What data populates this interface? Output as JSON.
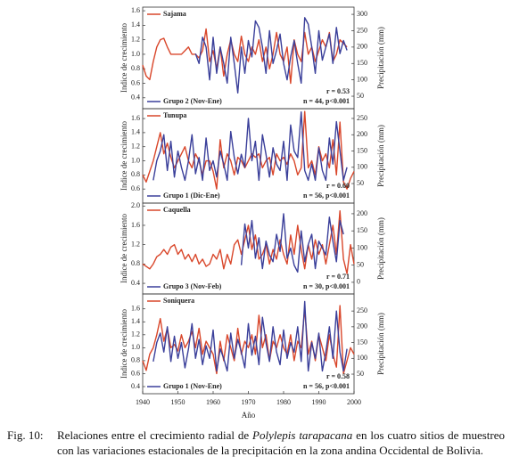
{
  "chart_data": [
    {
      "type": "line",
      "ylabel": "Indice de crecimiento",
      "y2label": "Precipitación (mm)",
      "x": [
        1940,
        1941,
        1942,
        1943,
        1944,
        1945,
        1946,
        1947,
        1948,
        1949,
        1950,
        1951,
        1952,
        1953,
        1954,
        1955,
        1956,
        1957,
        1958,
        1959,
        1960,
        1961,
        1962,
        1963,
        1964,
        1965,
        1966,
        1967,
        1968,
        1969,
        1970,
        1971,
        1972,
        1973,
        1974,
        1975,
        1976,
        1977,
        1978,
        1979,
        1980,
        1981,
        1982,
        1983,
        1984,
        1985,
        1986,
        1987,
        1988,
        1989,
        1990,
        1991,
        1992,
        1993,
        1994,
        1995,
        1996,
        1997,
        1998,
        1999,
        2000
      ],
      "xlim": [
        1940,
        2000
      ],
      "ylim": [
        0.25,
        1.65
      ],
      "yticks": [
        0.4,
        0.6,
        0.8,
        {
          "value": 1,
          "label": "1.0"
        },
        1.2,
        1.4,
        1.6
      ],
      "y2lim": [
        12,
        322
      ],
      "y2ticks": [
        50,
        100,
        150,
        200,
        250,
        300
      ],
      "series": [
        {
          "name": "Sajama",
          "color": "#d9472b",
          "values": [
            0.85,
            0.7,
            0.65,
            0.9,
            1.1,
            1.2,
            1.22,
            1.1,
            1.0,
            1.0,
            1.0,
            1.0,
            1.05,
            1.1,
            1.0,
            1.0,
            0.95,
            1.05,
            1.35,
            0.9,
            1.05,
            0.8,
            1.1,
            0.7,
            1.0,
            1.2,
            1.0,
            0.9,
            1.25,
            1.0,
            0.9,
            1.1,
            1.0,
            1.2,
            0.9,
            1.1,
            0.8,
            1.0,
            1.3,
            1.0,
            0.9,
            1.1,
            0.6,
            1.2,
            1.0,
            0.9,
            1.3,
            1.0,
            1.1,
            0.9,
            1.05,
            1.2,
            1.1,
            1.3,
            0.9,
            1.0,
            1.2,
            1.15,
            1.1,
            null,
            null
          ]
        },
        {
          "name": "Grupo 2 (Nov-Ene)",
          "color": "#3a3f9a",
          "axis": "y2",
          "values": [
            null,
            null,
            null,
            null,
            null,
            null,
            null,
            null,
            null,
            null,
            null,
            null,
            null,
            null,
            null,
            180,
            150,
            230,
            200,
            100,
            230,
            120,
            200,
            150,
            90,
            230,
            150,
            60,
            200,
            120,
            220,
            170,
            280,
            260,
            200,
            120,
            250,
            150,
            190,
            240,
            150,
            100,
            170,
            220,
            150,
            90,
            290,
            270,
            200,
            120,
            250,
            160,
            200,
            240,
            150,
            260,
            180,
            220,
            190,
            null,
            null
          ]
        }
      ],
      "annotations": [
        "r = 0.53",
        "n = 44, p<0.001"
      ]
    },
    {
      "type": "line",
      "ylabel": "Indice de crecimiento",
      "y2label": "Precipitación (mm)",
      "x": [
        1940,
        1941,
        1942,
        1943,
        1944,
        1945,
        1946,
        1947,
        1948,
        1949,
        1950,
        1951,
        1952,
        1953,
        1954,
        1955,
        1956,
        1957,
        1958,
        1959,
        1960,
        1961,
        1962,
        1963,
        1964,
        1965,
        1966,
        1967,
        1968,
        1969,
        1970,
        1971,
        1972,
        1973,
        1974,
        1975,
        1976,
        1977,
        1978,
        1979,
        1980,
        1981,
        1982,
        1983,
        1984,
        1985,
        1986,
        1987,
        1988,
        1989,
        1990,
        1991,
        1992,
        1993,
        1994,
        1995,
        1996,
        1997,
        1998,
        1999,
        2000
      ],
      "xlim": [
        1940,
        2000
      ],
      "ylim": [
        0.4,
        1.74
      ],
      "yticks": [
        0.6,
        0.8,
        {
          "value": 1,
          "label": "1.0"
        },
        1.2,
        1.4,
        1.6
      ],
      "y2lim": [
        -10,
        280
      ],
      "y2ticks": [
        50,
        100,
        150,
        200,
        250
      ],
      "series": [
        {
          "name": "Tunupa",
          "color": "#d9472b",
          "values": [
            0.8,
            0.7,
            0.85,
            1.0,
            1.2,
            1.4,
            1.1,
            1.25,
            1.05,
            0.9,
            1.0,
            1.1,
            1.2,
            1.0,
            0.9,
            1.1,
            1.0,
            0.8,
            1.0,
            1.0,
            0.85,
            0.6,
            1.3,
            0.9,
            1.1,
            1.0,
            0.8,
            1.05,
            1.0,
            0.9,
            1.0,
            1.1,
            1.05,
            1.1,
            0.9,
            1.0,
            1.05,
            0.8,
            1.1,
            1.0,
            1.05,
            0.95,
            1.1,
            1.0,
            0.8,
            0.9,
            1.7,
            0.9,
            1.0,
            0.8,
            1.2,
            1.0,
            1.1,
            0.9,
            1.3,
            0.8,
            1.55,
            0.7,
            0.6,
            0.75,
            0.85
          ]
        },
        {
          "name": "Grupo 1 (Dic-Ene)",
          "color": "#3a3f9a",
          "axis": "y2",
          "values": [
            null,
            null,
            null,
            60,
            120,
            150,
            200,
            90,
            180,
            70,
            150,
            100,
            60,
            120,
            200,
            80,
            130,
            60,
            190,
            90,
            120,
            70,
            150,
            110,
            60,
            210,
            130,
            80,
            140,
            100,
            250,
            120,
            180,
            60,
            200,
            140,
            70,
            160,
            110,
            90,
            180,
            60,
            230,
            150,
            130,
            270,
            90,
            60,
            110,
            60,
            160,
            90,
            60,
            190,
            110,
            240,
            150,
            60,
            100,
            null,
            null
          ]
        }
      ],
      "annotations": [
        "r = 0.60",
        "n = 56, p<0.001"
      ]
    },
    {
      "type": "line",
      "ylabel": "Indice de crecimiento",
      "y2label": "Precipitación (mm)",
      "x": [
        1940,
        1941,
        1942,
        1943,
        1944,
        1945,
        1946,
        1947,
        1948,
        1949,
        1950,
        1951,
        1952,
        1953,
        1954,
        1955,
        1956,
        1957,
        1958,
        1959,
        1960,
        1961,
        1962,
        1963,
        1964,
        1965,
        1966,
        1967,
        1968,
        1969,
        1970,
        1971,
        1972,
        1973,
        1974,
        1975,
        1976,
        1977,
        1978,
        1979,
        1980,
        1981,
        1982,
        1983,
        1984,
        1985,
        1986,
        1987,
        1988,
        1989,
        1990,
        1991,
        1992,
        1993,
        1994,
        1995,
        1996,
        1997,
        1998,
        1999,
        2000
      ],
      "xlim": [
        1940,
        2000
      ],
      "ylim": [
        0.18,
        2.06
      ],
      "yticks": [
        0.4,
        0.8,
        1.2,
        1.6,
        {
          "value": 2,
          "label": "2.0"
        }
      ],
      "y2lim": [
        -34,
        231
      ],
      "y2ticks": [
        0,
        50,
        100,
        150,
        200
      ],
      "series": [
        {
          "name": "Caquella",
          "color": "#d9472b",
          "values": [
            0.8,
            0.75,
            0.7,
            0.8,
            0.95,
            1.0,
            1.1,
            1.0,
            1.15,
            1.2,
            1.0,
            1.1,
            0.9,
            1.0,
            0.85,
            1.0,
            0.8,
            0.9,
            0.75,
            0.8,
            1.0,
            0.9,
            1.1,
            0.7,
            1.0,
            0.8,
            1.2,
            1.3,
            1.0,
            1.3,
            1.6,
            1.1,
            1.4,
            0.9,
            1.0,
            1.2,
            0.8,
            1.1,
            0.9,
            1.3,
            1.0,
            0.8,
            1.4,
            1.0,
            1.6,
            1.1,
            0.7,
            1.2,
            0.9,
            1.3,
            1.0,
            1.2,
            0.8,
            1.2,
            1.6,
            1.0,
            1.9,
            0.9,
            0.6,
            1.2,
            0.8
          ]
        },
        {
          "name": "Grupo 3 (Nov-Feb)",
          "color": "#3a3f9a",
          "axis": "y2",
          "values": [
            null,
            null,
            null,
            null,
            null,
            null,
            null,
            null,
            null,
            null,
            null,
            null,
            null,
            null,
            null,
            null,
            null,
            null,
            null,
            null,
            null,
            null,
            null,
            null,
            null,
            null,
            null,
            null,
            50,
            170,
            100,
            180,
            70,
            130,
            40,
            120,
            80,
            60,
            140,
            90,
            200,
            70,
            100,
            50,
            30,
            150,
            60,
            110,
            140,
            40,
            120,
            100,
            80,
            190,
            120,
            60,
            180,
            140,
            null,
            null,
            null
          ]
        }
      ],
      "annotations": [
        "r = 0.71",
        "n = 30, p<0.001"
      ]
    },
    {
      "type": "line",
      "ylabel": "Indice de crecimiento",
      "y2label": "Precipitación (mm)",
      "xlabel": "Año",
      "x": [
        1940,
        1941,
        1942,
        1943,
        1944,
        1945,
        1946,
        1947,
        1948,
        1949,
        1950,
        1951,
        1952,
        1953,
        1954,
        1955,
        1956,
        1957,
        1958,
        1959,
        1960,
        1961,
        1962,
        1963,
        1964,
        1965,
        1966,
        1967,
        1968,
        1969,
        1970,
        1971,
        1972,
        1973,
        1974,
        1975,
        1976,
        1977,
        1978,
        1979,
        1980,
        1981,
        1982,
        1983,
        1984,
        1985,
        1986,
        1987,
        1988,
        1989,
        1990,
        1991,
        1992,
        1993,
        1994,
        1995,
        1996,
        1997,
        1998,
        1999,
        2000
      ],
      "xlim": [
        1940,
        2000
      ],
      "xticks": [
        1940,
        1950,
        1960,
        1970,
        1980,
        1990,
        2000
      ],
      "ylim": [
        0.29,
        1.83
      ],
      "yticks": [
        0.4,
        0.6,
        0.8,
        {
          "value": 1,
          "label": "1.0"
        },
        1.2,
        1.4,
        1.6
      ],
      "y2lim": [
        -12,
        304
      ],
      "y2ticks": [
        50,
        100,
        150,
        200,
        250
      ],
      "series": [
        {
          "name": "Soniquera",
          "color": "#d9472b",
          "values": [
            0.8,
            0.65,
            0.9,
            1.0,
            1.2,
            1.45,
            1.1,
            1.3,
            1.0,
            1.05,
            0.95,
            1.2,
            1.0,
            1.1,
            1.25,
            1.0,
            1.3,
            0.9,
            1.1,
            1.0,
            0.9,
            0.6,
            1.1,
            0.8,
            1.2,
            1.0,
            0.8,
            1.3,
            0.9,
            1.1,
            1.0,
            1.2,
            0.9,
            1.5,
            1.0,
            1.2,
            0.8,
            1.1,
            1.0,
            1.2,
            1.0,
            0.9,
            1.2,
            0.8,
            1.1,
            1.0,
            1.6,
            0.9,
            1.1,
            0.8,
            1.2,
            1.0,
            0.8,
            1.2,
            0.9,
            0.7,
            1.65,
            0.6,
            0.8,
            1.0,
            0.9
          ]
        },
        {
          "name": "Grupo 1 (Nov-Ene)",
          "color": "#3a3f9a",
          "axis": "y2",
          "values": [
            null,
            null,
            null,
            90,
            150,
            180,
            120,
            200,
            90,
            170,
            100,
            150,
            70,
            130,
            210,
            100,
            160,
            80,
            140,
            100,
            190,
            60,
            130,
            100,
            60,
            180,
            100,
            160,
            120,
            70,
            210,
            110,
            170,
            80,
            230,
            150,
            90,
            200,
            120,
            80,
            190,
            100,
            150,
            120,
            200,
            90,
            280,
            60,
            150,
            100,
            180,
            60,
            120,
            200,
            100,
            250,
            120,
            60,
            130,
            null,
            null
          ]
        }
      ],
      "annotations": [
        "r = 0.58",
        "n = 56, p<0.001"
      ]
    }
  ],
  "caption": {
    "label": "Fig. 10:",
    "text_before": "Relaciones entre el crecimiento radial de ",
    "species": "Polylepis tarapacana",
    "text_after": " en los cuatro sitios de muestreo con las variaciones estacionales de la precipitación en la zona andina Occidental de Bolivia."
  }
}
